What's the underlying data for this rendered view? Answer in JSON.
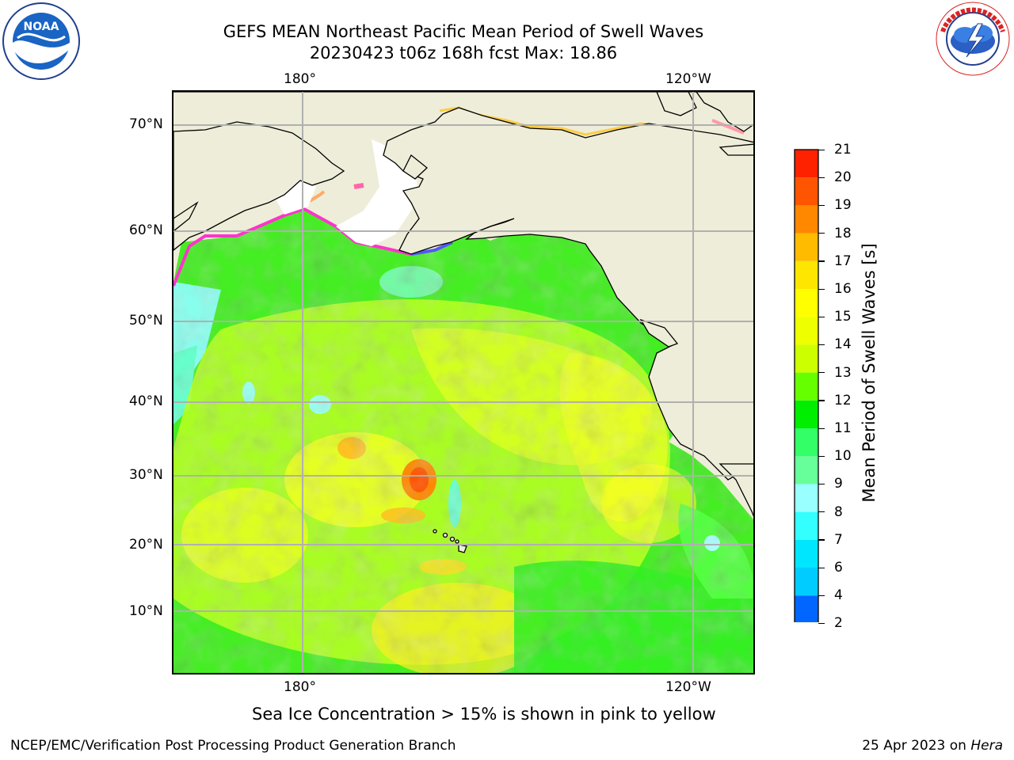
{
  "header": {
    "title_line1": "GEFS MEAN Northeast Pacific Mean Period of Swell Waves",
    "title_line2": "20230423 t06z 168h fcst   Max: 18.86"
  },
  "logos": {
    "left": {
      "icon": "noaa-logo-icon",
      "text": "NOAA",
      "ring_text": "NATIONAL OCEANIC AND ATMOSPHERIC ADMINISTRATION · U.S. DEPARTMENT OF COMMERCE"
    },
    "right": {
      "icon": "nws-logo-icon",
      "ring_text": "NATIONAL WEATHER SERVICE"
    }
  },
  "map": {
    "lon_labels": [
      "180°",
      "120°W"
    ],
    "lat_labels": [
      "70°N",
      "60°N",
      "50°N",
      "40°N",
      "30°N",
      "20°N",
      "10°N"
    ],
    "land_color": "#eeedd9",
    "ice_colors": [
      "#ff33cc",
      "#ff99aa",
      "#ffcc66"
    ]
  },
  "colorbar": {
    "title": "Mean Period of Swell Waves [s]",
    "ticks": [
      "2",
      "4",
      "6",
      "7",
      "8",
      "9",
      "10",
      "11",
      "12",
      "13",
      "14",
      "15",
      "16",
      "17",
      "18",
      "19",
      "20",
      "21"
    ],
    "colors": [
      "#0066ff",
      "#00ccff",
      "#00e6ff",
      "#33ffff",
      "#99ffff",
      "#66ff99",
      "#33ff66",
      "#00ee00",
      "#66ff00",
      "#ccff00",
      "#eeff00",
      "#ffff00",
      "#ffe600",
      "#ffbb00",
      "#ff8800",
      "#ff5500",
      "#ff2200"
    ],
    "under_color": "#0000ff"
  },
  "footer": {
    "note": "Sea Ice Concentration > 15% is shown in pink to yellow",
    "left": "NCEP/EMC/Verification Post Processing Product Generation Branch",
    "right_date": "25 Apr 2023 on",
    "right_machine": "Hera"
  }
}
